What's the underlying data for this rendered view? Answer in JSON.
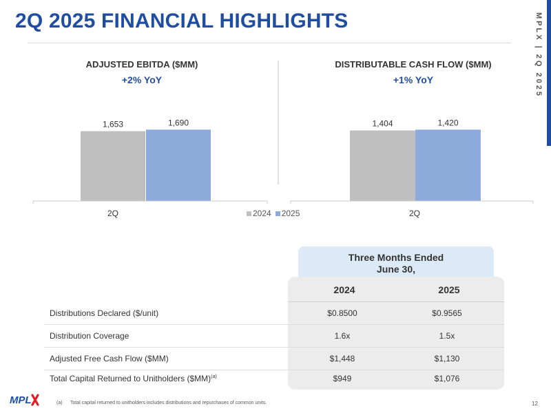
{
  "header": {
    "title": "2Q 2025 FINANCIAL HIGHLIGHTS",
    "side_label": "MPLX | 2Q 2025"
  },
  "colors": {
    "accent": "#1f4ea1",
    "series_2024": "#bfbfbf",
    "series_2025": "#8eaadb"
  },
  "chart_data": [
    {
      "type": "bar",
      "title": "ADJUSTED EBITDA ($MM)",
      "subtitle": "+2% YoY",
      "categories": [
        "2Q"
      ],
      "series": [
        {
          "name": "2024",
          "values": [
            1653
          ],
          "labels": [
            "1,653"
          ]
        },
        {
          "name": "2025",
          "values": [
            1690
          ],
          "labels": [
            "1,690"
          ]
        }
      ],
      "ylim": [
        0,
        2200
      ]
    },
    {
      "type": "bar",
      "title": "DISTRIBUTABLE CASH FLOW ($MM)",
      "subtitle": "+1% YoY",
      "categories": [
        "2Q"
      ],
      "series": [
        {
          "name": "2024",
          "values": [
            1404
          ],
          "labels": [
            "1,404"
          ]
        },
        {
          "name": "2025",
          "values": [
            1420
          ],
          "labels": [
            "1,420"
          ]
        }
      ],
      "ylim": [
        0,
        1850
      ]
    }
  ],
  "legend": {
    "items": [
      "2024",
      "2025"
    ]
  },
  "table": {
    "period_header": "Three Months Ended\nJune 30,",
    "period_line1": "Three Months Ended",
    "period_line2": "June 30,",
    "columns": [
      "2024",
      "2025"
    ],
    "rows": [
      {
        "label": "Distributions Declared ($/unit)",
        "values": [
          "$0.8500",
          "$0.9565"
        ]
      },
      {
        "label": "Distribution Coverage",
        "values": [
          "1.6x",
          "1.5x"
        ]
      },
      {
        "label": "Adjusted Free Cash Flow ($MM)",
        "values": [
          "$1,448",
          "$1,130"
        ]
      },
      {
        "label": "Total Capital Returned to Unitholders ($MM)",
        "sup": "(a)",
        "values": [
          "$949",
          "$1,076"
        ]
      }
    ]
  },
  "footnote": {
    "mark": "(a)",
    "text": "Total capital returned to unitholders includes distributions and repurchases of common units."
  },
  "page_number": "12",
  "logo": {
    "text": "MPLX",
    "icon": "mplx-logo"
  }
}
